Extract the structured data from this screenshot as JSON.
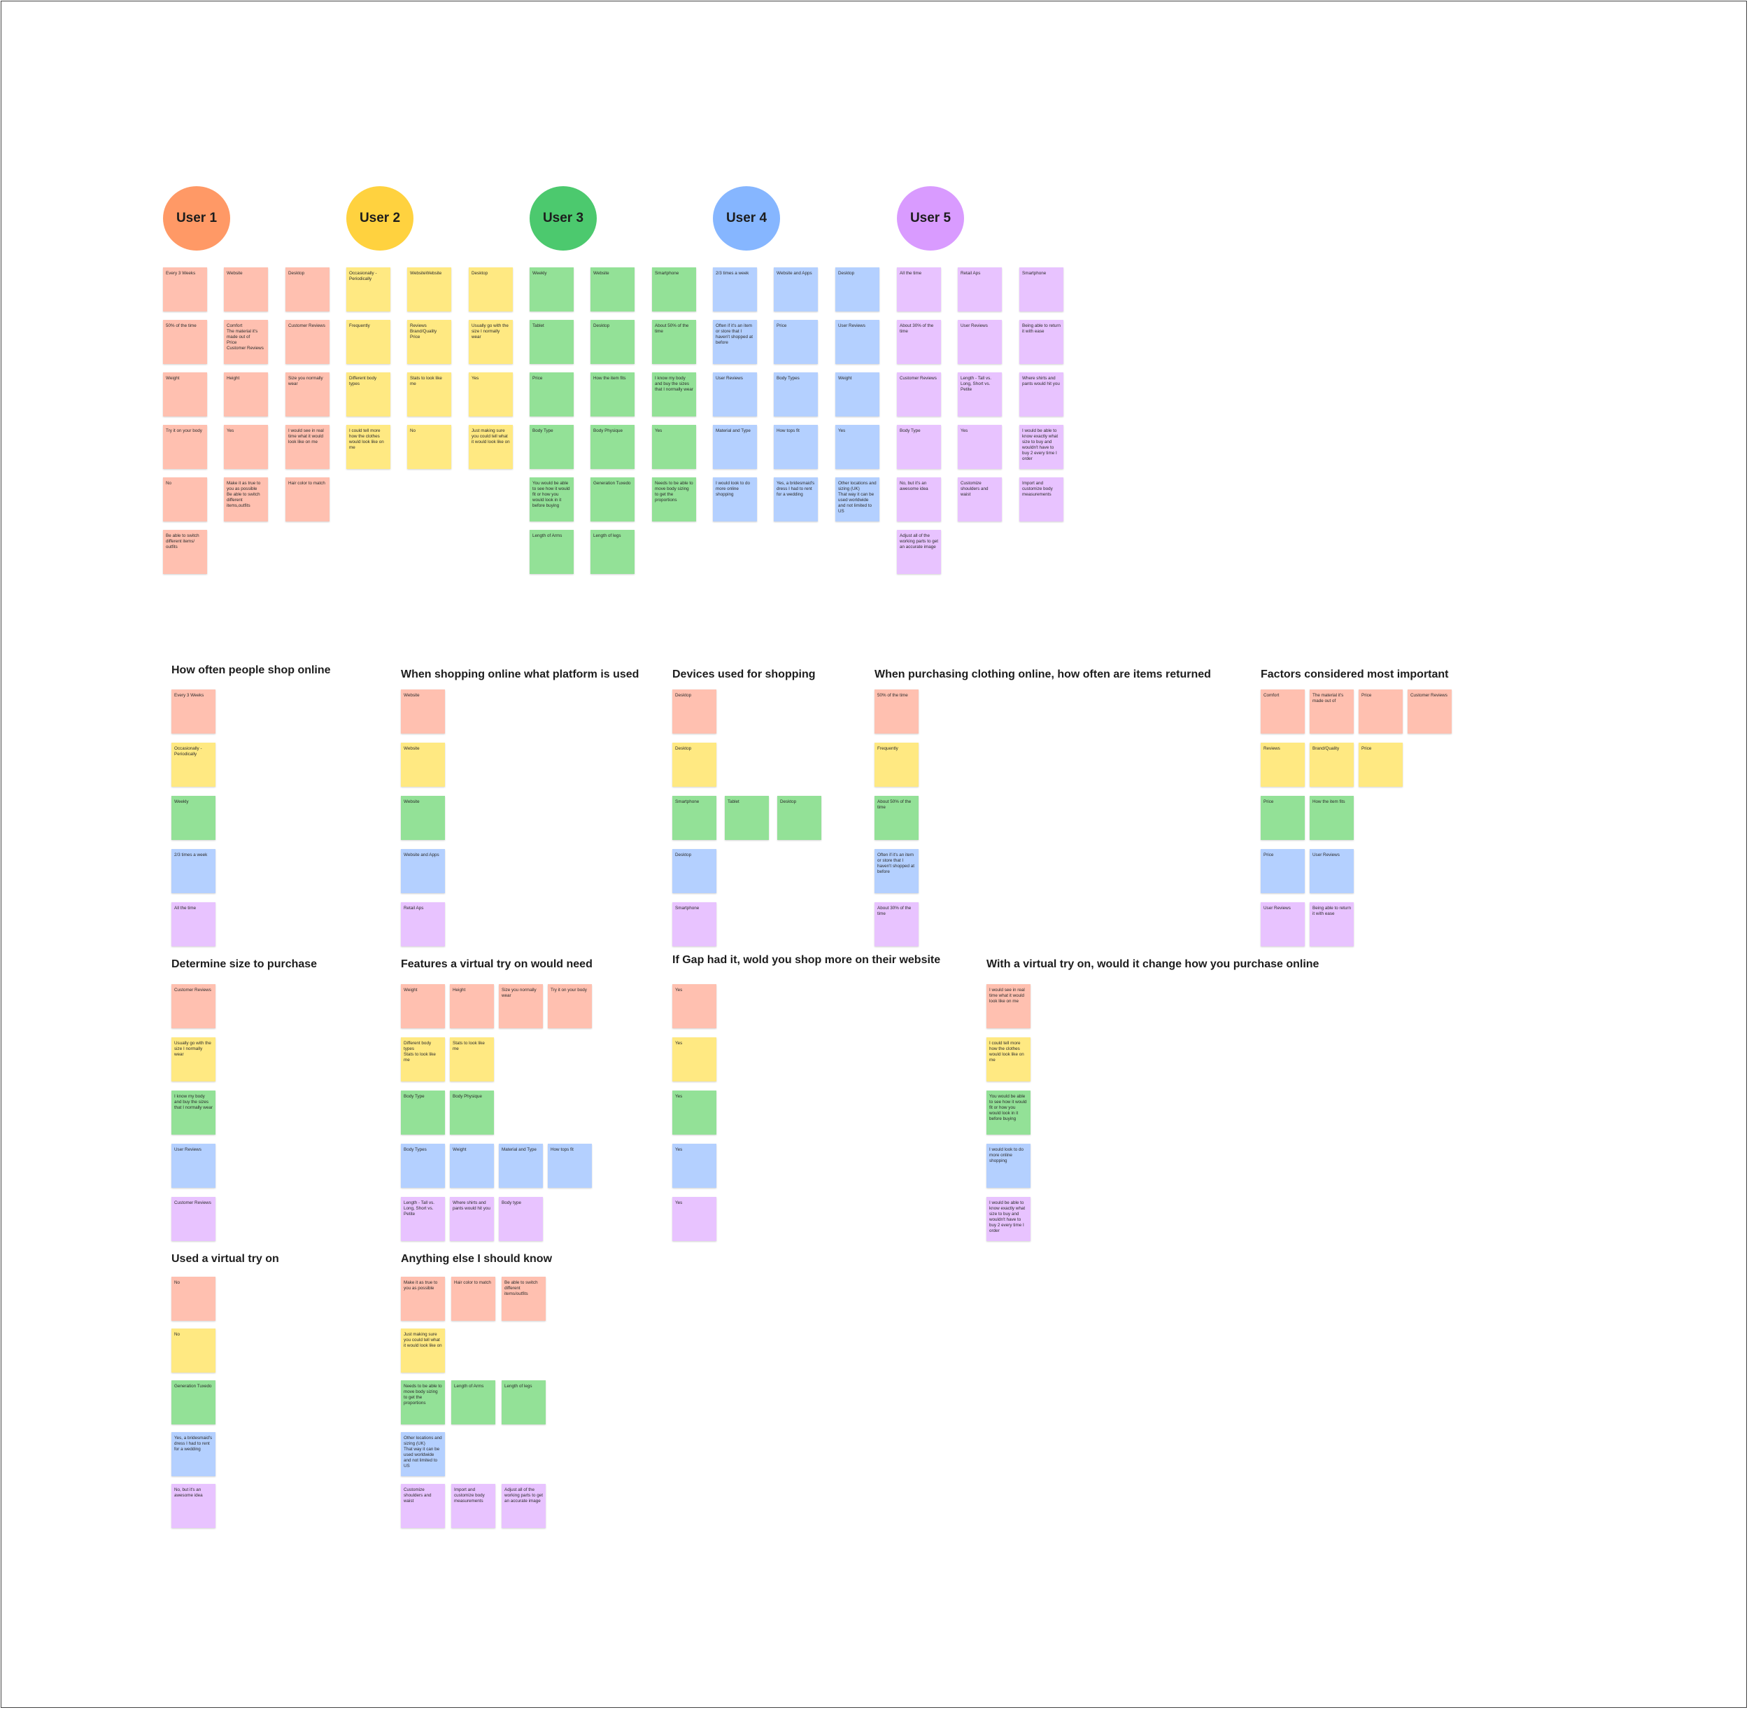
{
  "users": [
    {
      "label": "User 1",
      "color": "#ff9966",
      "col": 0,
      "columns": [
        [
          "Every 3 Weeks",
          "50% of the time",
          "Weight",
          "Try it on your body",
          "No",
          "Be able to switch different items/ outfits"
        ],
        [
          "Website",
          "Comfort\nThe material it's made out of\nPrice\nCustomer Reviews",
          "Height",
          "Yes",
          "Make it as true to you as possible\nBe able to switch different items,outfits"
        ],
        [
          "Desktop",
          "Customer Reviews",
          "Size you normally wear",
          "I would see in real time what it would look like on me",
          "Hair color to match"
        ]
      ]
    },
    {
      "label": "User 2",
      "color": "#ffd23f",
      "col": 1,
      "columns": [
        [
          "Occasionally - Periodically",
          "Frequently",
          "Different body types",
          "I could tell more how the clothes would look like on me"
        ],
        [
          "WebsiteWebsite",
          "Reviews\nBrand/Quality\nPrice",
          "Stats to look like me",
          "No"
        ],
        [
          "Desktop",
          "Usually go with the size I normally wear",
          "Yes",
          "Just making sure you could tell what it would look like on"
        ]
      ]
    },
    {
      "label": "User 3",
      "color": "#4cc96e",
      "col": 2,
      "columns": [
        [
          "Weekly",
          "Tablet",
          "Price",
          "Body Type",
          "You would be able to see how it would fit or how you would look in it before buying",
          "Length of Arms"
        ],
        [
          "Website",
          "Desktop",
          "How the item fits",
          "Body Physique",
          "Generation Tuxedo",
          "Length of legs"
        ],
        [
          "Smartphone",
          "About 50% of the time",
          "I know my body and buy the sizes that I normally wear",
          "Yes",
          "Needs to be able to move body sizing to get the proportions"
        ]
      ]
    },
    {
      "label": "User 4",
      "color": "#86b6ff",
      "col": 3,
      "columns": [
        [
          "2/3 times a week",
          "Often if it's an item or store that I haven't shopped at before",
          "User Reviews",
          "Material and Type",
          "I would look to do more online shopping"
        ],
        [
          "Website and Apps",
          "Price",
          "Body Types",
          "How tops fit",
          "Yes, a bridesmaid's dress I had to rent for a wedding"
        ],
        [
          "Desktop",
          "User Reviews",
          "Weight",
          "Yes",
          "Other locations and sizing (UK)\nThat way it can be used worldwide and not limited to US"
        ]
      ]
    },
    {
      "label": "User 5",
      "color": "#d99bff",
      "col": 4,
      "columns": [
        [
          "All the time",
          "About 30% of the time",
          "Customer Reviews",
          "Body Type",
          "No, but it's an awesome idea",
          "Adjust all of the working parts to get an accurate image"
        ],
        [
          "Retail Aps",
          "User Reviews",
          "Length - Tall vs. Long, Short vs. Petite",
          "Yes",
          "Customize shoulders and waist"
        ],
        [
          "Smartphone",
          "Being able to return it with ease",
          "Where shirts and pants would hit you",
          "I would be able to know exactly what size to buy and wouldn't have to buy  2 every time I order",
          "Import and customize body measurements"
        ]
      ]
    }
  ],
  "groups": [
    {
      "title": "How often people shop online",
      "rows": [
        [
          "Every 3 Weeks"
        ],
        [
          "Occasionally - Periodically"
        ],
        [
          "Weekly"
        ],
        [
          "2/3 times a week"
        ],
        [
          "All the time"
        ]
      ]
    },
    {
      "title": "When shopping online what platform is used",
      "rows": [
        [
          "Website"
        ],
        [
          "Website"
        ],
        [
          "Website"
        ],
        [
          "Website and Apps"
        ],
        [
          "Retail Aps"
        ]
      ]
    },
    {
      "title": "Devices used for shopping",
      "rows": [
        [
          "Desktop"
        ],
        [
          "Desktop"
        ],
        [
          "Smartphone",
          "Tablet",
          "Desktop"
        ],
        [
          "Desktop"
        ],
        [
          "Smartphone"
        ]
      ]
    },
    {
      "title": "When purchasing clothing online, how often are items returned",
      "rows": [
        [
          "50% of the time"
        ],
        [
          "Frequently"
        ],
        [
          "About 50% of the time"
        ],
        [
          "Often if it's an item or store that I haven't shopped at before"
        ],
        [
          "About 30% of the time"
        ]
      ]
    },
    {
      "title": "Factors considered most important",
      "rows": [
        [
          "Comfort",
          "The material it's made out of",
          "Price",
          "Customer Reviews"
        ],
        [
          "Reviews",
          "Brand/Quality",
          "Price"
        ],
        [
          "Price",
          "How the item fits"
        ],
        [
          "Price",
          "User Reviews"
        ],
        [
          "User Reviews",
          "Being able to return it with ease"
        ]
      ]
    },
    {
      "title": "Determine size to purchase",
      "rows": [
        [
          "Customer Reviews"
        ],
        [
          "Usually go with the size I normally wear"
        ],
        [
          "I know my body and buy the sizes that I normally wear"
        ],
        [
          "User Reviews"
        ],
        [
          "Customer Reviews"
        ]
      ]
    },
    {
      "title": "Features a virtual try on would need",
      "rows": [
        [
          "Weight",
          "Height",
          "Size you normally wear",
          "Try it on your body"
        ],
        [
          "Different body types\nStats to look like me",
          "Stats to look like me"
        ],
        [
          "Body Type",
          "Body Physique"
        ],
        [
          "Body Types",
          "Weight",
          "Material and Type",
          "How tops fit"
        ],
        [
          "Length - Tall vs. Long, Short vs. Petite",
          "Where shirts and pants would hit you",
          "Body type"
        ]
      ]
    },
    {
      "title": "If Gap had it, wold you shop more on their website",
      "rows": [
        [
          "Yes"
        ],
        [
          "Yes"
        ],
        [
          "Yes"
        ],
        [
          "Yes"
        ],
        [
          "Yes"
        ]
      ]
    },
    {
      "title": "With a virtual try on, would it change how you purchase online",
      "rows": [
        [
          "I would see in real time what it would look like on me"
        ],
        [
          "I could tell more how the clothes would look like on me"
        ],
        [
          "You would be able to see how it would fit or how you would look in it before buying"
        ],
        [
          "I would look to do more online shopping"
        ],
        [
          "I would be able to know exactly what size to buy and wouldn't have to buy  2 every time I order"
        ]
      ]
    },
    {
      "title": "Used a virtual try on",
      "rows": [
        [
          "No"
        ],
        [
          "No"
        ],
        [
          "Generation Tuxedo"
        ],
        [
          "Yes, a bridesmaid's dress I had to rent for a wedding"
        ],
        [
          "No, but it's an awesome idea"
        ]
      ]
    },
    {
      "title": "Anything else I should know",
      "rows": [
        [
          "Make it as true to you as possible",
          "Hair color to match",
          "Be able to switch different items/outfits"
        ],
        [
          "Just making sure you could tell what it would look like on"
        ],
        [
          "Needs to be able to move body sizing to get the proportions",
          "Length of Arms",
          "Length of legs"
        ],
        [
          "Other locations and sizing (UK)\nThat way it can be used worldwide and not limited to US"
        ],
        [
          "Customize shoulders and waist",
          "Import and customize body measurements",
          "Adjust all of the working parts to get an accurate image"
        ]
      ]
    }
  ],
  "note_colors": {
    "red": "#ffc0b0",
    "yellow": "#ffe982",
    "green": "#93e197",
    "blue": "#b4d0ff",
    "purple": "#e8c3ff"
  }
}
